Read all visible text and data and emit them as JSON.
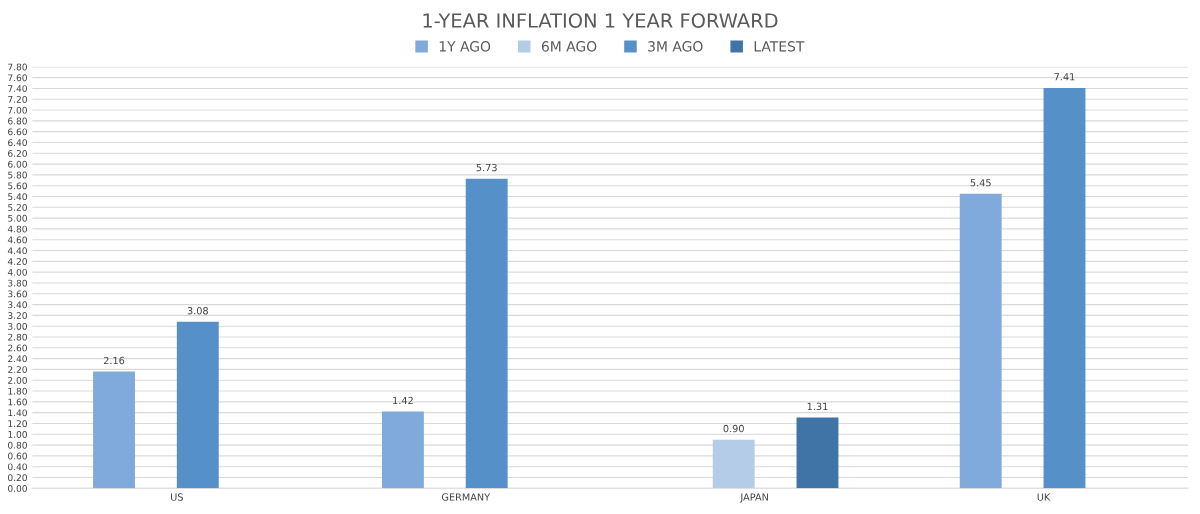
{
  "chart_data": {
    "type": "bar",
    "title": "1-YEAR INFLATION 1 YEAR FORWARD",
    "categories": [
      "US",
      "GERMANY",
      "JAPAN",
      "UK"
    ],
    "series": [
      {
        "name": "1Y AGO",
        "color": "#7faadb",
        "values": [
          2.16,
          1.42,
          null,
          5.45
        ],
        "value_labels": [
          "2.16",
          "1.42",
          null,
          "5.45"
        ]
      },
      {
        "name": "6M AGO",
        "color": "#b4cce8",
        "values": [
          null,
          null,
          0.9,
          null
        ],
        "value_labels": [
          null,
          null,
          "0.90",
          null
        ]
      },
      {
        "name": "3M AGO",
        "color": "#5591c8",
        "values": [
          3.08,
          5.73,
          null,
          7.41
        ],
        "value_labels": [
          "3.08",
          "5.73",
          null,
          "7.41"
        ]
      },
      {
        "name": "LATEST",
        "color": "#4174a6",
        "values": [
          null,
          null,
          1.31,
          null
        ],
        "value_labels": [
          null,
          null,
          "1.31",
          null
        ]
      }
    ],
    "ylim": [
      0,
      7.8
    ],
    "yticks": [
      {
        "value": 0,
        "label": "0.00"
      },
      {
        "value": 0.2,
        "label": "0.20"
      },
      {
        "value": 0.4,
        "label": "0.40"
      },
      {
        "value": 0.6,
        "label": "0.60"
      },
      {
        "value": 0.8,
        "label": "0.80"
      },
      {
        "value": 1.0,
        "label": "1.00"
      },
      {
        "value": 1.2,
        "label": "1.20"
      },
      {
        "value": 1.4,
        "label": "1.40"
      },
      {
        "value": 1.6,
        "label": "1.60"
      },
      {
        "value": 1.8,
        "label": "1.80"
      },
      {
        "value": 2.0,
        "label": "2.00"
      },
      {
        "value": 2.2,
        "label": "2.20"
      },
      {
        "value": 2.4,
        "label": "2.40"
      },
      {
        "value": 2.6,
        "label": "2.60"
      },
      {
        "value": 2.8,
        "label": "2.80"
      },
      {
        "value": 3.0,
        "label": "3.00"
      },
      {
        "value": 3.2,
        "label": "3.20"
      },
      {
        "value": 3.4,
        "label": "3.40"
      },
      {
        "value": 3.6,
        "label": "3.60"
      },
      {
        "value": 3.8,
        "label": "3.80"
      },
      {
        "value": 4.0,
        "label": "4.00"
      },
      {
        "value": 4.2,
        "label": "4.20"
      },
      {
        "value": 4.4,
        "label": "4.40"
      },
      {
        "value": 4.6,
        "label": "4.60"
      },
      {
        "value": 4.8,
        "label": "4.80"
      },
      {
        "value": 5.0,
        "label": "5.00"
      },
      {
        "value": 5.2,
        "label": "5.20"
      },
      {
        "value": 5.4,
        "label": "5.40"
      },
      {
        "value": 5.6,
        "label": "5.60"
      },
      {
        "value": 5.8,
        "label": "5.80"
      },
      {
        "value": 6.0,
        "label": "6.00"
      },
      {
        "value": 6.2,
        "label": "6.20"
      },
      {
        "value": 6.4,
        "label": "6.40"
      },
      {
        "value": 6.6,
        "label": "6.60"
      },
      {
        "value": 6.8,
        "label": "6.80"
      },
      {
        "value": 7.0,
        "label": "7.00"
      },
      {
        "value": 7.2,
        "label": "7.20"
      },
      {
        "value": 7.4,
        "label": "7.40"
      },
      {
        "value": 7.6,
        "label": "7.60"
      },
      {
        "value": 7.8,
        "label": "7.80"
      }
    ],
    "grid": "y",
    "legend": "top"
  }
}
